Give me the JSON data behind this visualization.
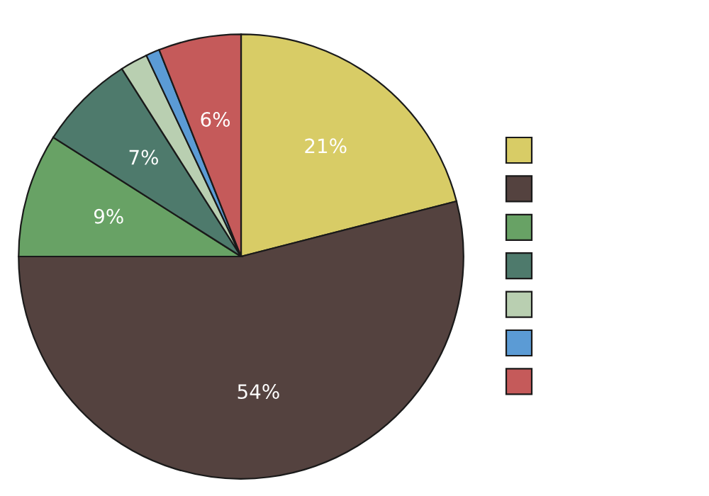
{
  "chart_data": {
    "type": "pie",
    "categories": [
      null,
      null,
      null,
      null,
      null,
      null,
      null
    ],
    "values": [
      21,
      54,
      9,
      7,
      2,
      1,
      6
    ],
    "value_labels": [
      "21%",
      "54%",
      "9%",
      "7%",
      null,
      null,
      "6%"
    ],
    "colors": [
      "#d8cc66",
      "#54423f",
      "#68a265",
      "#4e7a6c",
      "#b9cfb1",
      "#5b9bd5",
      "#c55a5a"
    ]
  }
}
